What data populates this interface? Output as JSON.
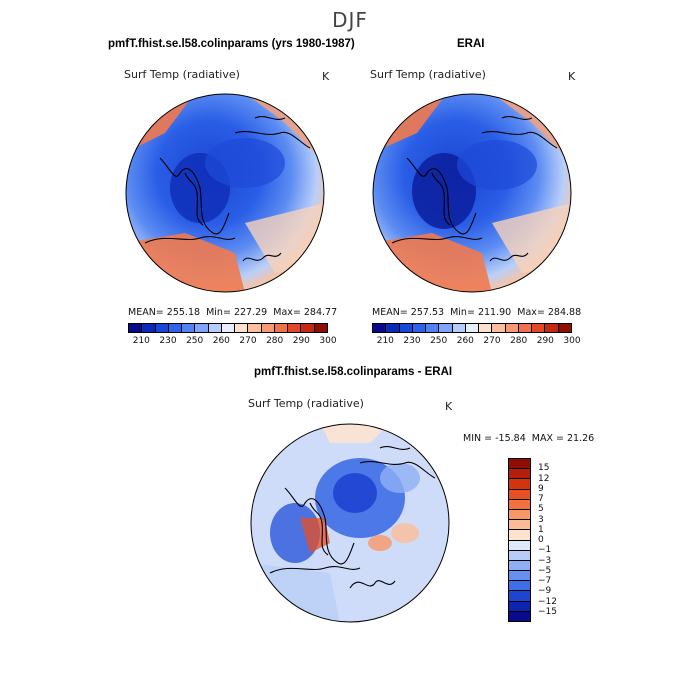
{
  "figure": {
    "title": "DJF"
  },
  "panels": [
    {
      "title": "pmfT.fhist.se.l58.colinparams (yrs 1980-1987)",
      "variable": "Surf Temp (radiative)",
      "units": "K",
      "stats": {
        "mean_label": "MEAN=",
        "mean": "255.18",
        "min_label": "Min=",
        "min": "227.29",
        "max_label": "Max=",
        "max": "284.77"
      }
    },
    {
      "title": "ERAI",
      "variable": "Surf Temp (radiative)",
      "units": "K",
      "stats": {
        "mean_label": "MEAN=",
        "mean": "257.53",
        "min_label": "Min=",
        "min": "211.90",
        "max_label": "Max=",
        "max": "284.88"
      }
    },
    {
      "title": "pmfT.fhist.se.l58.colinparams - ERAI",
      "variable": "Surf Temp (radiative)",
      "units": "K",
      "stats": {
        "min_label": "MIN =",
        "min": "-15.84",
        "max_label": "MAX =",
        "max": "21.26"
      }
    }
  ],
  "abs_colorbar": {
    "ticks": [
      "210",
      "230",
      "250",
      "260",
      "270",
      "280",
      "290",
      "300"
    ],
    "colors": [
      "#0a0a8c",
      "#0b2ab5",
      "#1748d6",
      "#2e64eb",
      "#4f82f2",
      "#7ea5f7",
      "#b5cdfa",
      "#e6eefc",
      "#fde1cf",
      "#fbbf9f",
      "#f79a73",
      "#f0714a",
      "#e04a25",
      "#c42a10",
      "#8f0f05"
    ]
  },
  "diff_colorbar": {
    "ticks": [
      "15",
      "12",
      "9",
      "7",
      "5",
      "3",
      "1",
      "0",
      "−1",
      "−3",
      "−5",
      "−7",
      "−9",
      "−12",
      "−15"
    ],
    "colors": [
      "#8f0f05",
      "#b41e0a",
      "#d3330f",
      "#e84f22",
      "#f2713f",
      "#f89868",
      "#fbbd98",
      "#fde3cf",
      "#dfe9fb",
      "#b7cdf8",
      "#8eb0f4",
      "#6690ef",
      "#3e6de6",
      "#1f44d2",
      "#0d24b0",
      "#0a0a8c"
    ]
  },
  "icons": {
    "coastline": "coastline-outline",
    "map_boundary": "polar-stereographic-disc"
  },
  "colors": {
    "warm": "#f07a4e",
    "cold": "#2f5fe8",
    "neutral": "#e8eefc"
  }
}
